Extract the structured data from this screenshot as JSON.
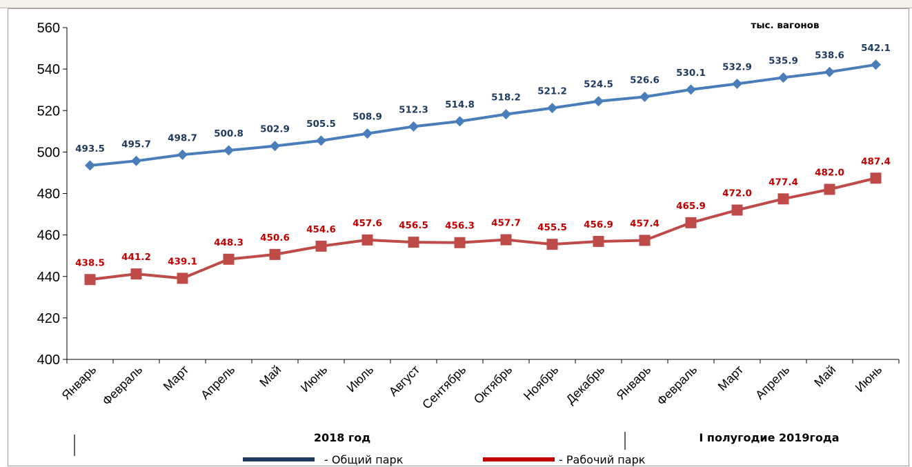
{
  "colors": {
    "series_total": "#4a7ebb",
    "series_total_label": "#1f3a5f",
    "series_working": "#be4b48",
    "series_working_label": "#c00000",
    "legend_total": "#1f3a5f",
    "legend_working": "#c00000"
  },
  "chart_data": {
    "type": "line",
    "title": "",
    "unit_label": "тыс. вагонов",
    "xlabel": "",
    "ylabel": "",
    "ylim": [
      400,
      560
    ],
    "y_ticks": [
      400,
      420,
      440,
      460,
      480,
      500,
      520,
      540,
      560
    ],
    "categories": [
      "Январь",
      "Февраль",
      "Март",
      "Апрель",
      "Май",
      "Июнь",
      "Июль",
      "Август",
      "Сентябрь",
      "Октябрь",
      "Ноябрь",
      "Декабрь",
      "Январь",
      "Февраль",
      "Март",
      "Апрель",
      "Май",
      "Июнь"
    ],
    "periods": [
      {
        "label": "2018 год",
        "start_index": 0,
        "end_index": 11
      },
      {
        "label": "I полугодие 2019года",
        "start_index": 12,
        "end_index": 17
      }
    ],
    "series": [
      {
        "name": "- Общий парк",
        "marker": "diamond",
        "values": [
          493.5,
          495.7,
          498.7,
          500.8,
          502.9,
          505.5,
          508.9,
          512.3,
          514.8,
          518.2,
          521.2,
          524.5,
          526.6,
          530.1,
          532.9,
          535.9,
          538.6,
          542.1
        ],
        "labels": [
          "493.5",
          "495.7",
          "498.7",
          "500.8",
          "502.9",
          "505.5",
          "508.9",
          "512.3",
          "514.8",
          "518.2",
          "521.2",
          "524.5",
          "526.6",
          "530.1",
          "532.9",
          "535.9",
          "538.6",
          "542.1"
        ]
      },
      {
        "name": "- Рабочий парк",
        "marker": "square",
        "values": [
          438.5,
          441.2,
          439.1,
          448.3,
          450.6,
          454.6,
          457.6,
          456.5,
          456.3,
          457.7,
          455.5,
          456.9,
          457.4,
          465.9,
          472.0,
          477.4,
          482.0,
          487.4
        ],
        "labels": [
          "438.5",
          "441.2",
          "439.1",
          "448.3",
          "450.6",
          "454.6",
          "457.6",
          "456.5",
          "456.3",
          "457.7",
          "455.5",
          "456.9",
          "457.4",
          "465.9",
          "472.0",
          "477.4",
          "482.0",
          "487.4"
        ]
      }
    ],
    "grid": false,
    "legend_position": "bottom"
  }
}
